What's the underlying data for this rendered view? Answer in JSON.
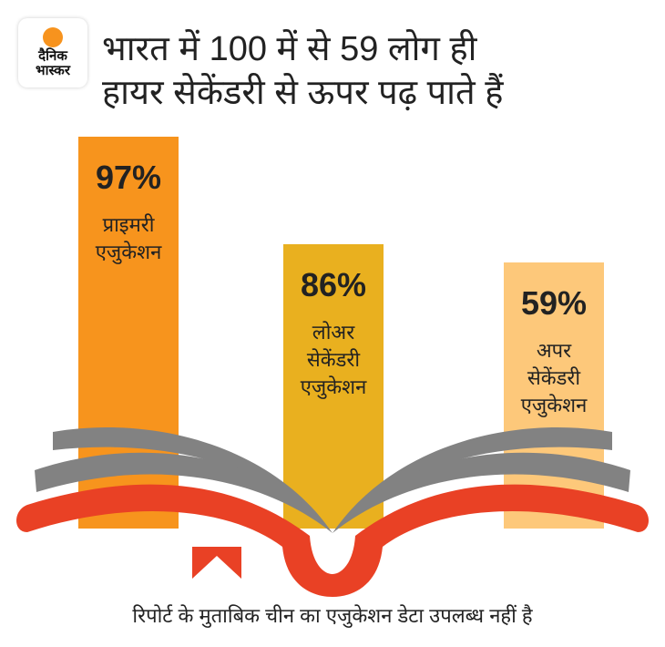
{
  "logo": {
    "line1": "दैनिक",
    "line2": "भास्कर"
  },
  "title": {
    "line1": "भारत में 100 में से 59 लोग ही",
    "line2": "हायर सेकेंडरी से ऊपर पढ़ पाते हैं"
  },
  "chart_data": {
    "type": "bar",
    "title": "भारत में 100 में से 59 लोग ही हायर सेकेंडरी से ऊपर पढ़ पाते हैं",
    "categories": [
      "प्राइमरी\nएजुकेशन",
      "लोअर\nसेकेंडरी\nएजुकेशन",
      "अपर\nसेकेंडरी\nएजुकेशन"
    ],
    "values": [
      97,
      86,
      59
    ],
    "labels": [
      "97%",
      "86%",
      "59%"
    ],
    "colors": [
      "#f7941d",
      "#e9b01f",
      "#fdc87a"
    ],
    "unit": "%"
  },
  "footer": "रिपोर्ट के मुताबिक चीन का एजुकेशन डेटा उपलब्ध नहीं है"
}
